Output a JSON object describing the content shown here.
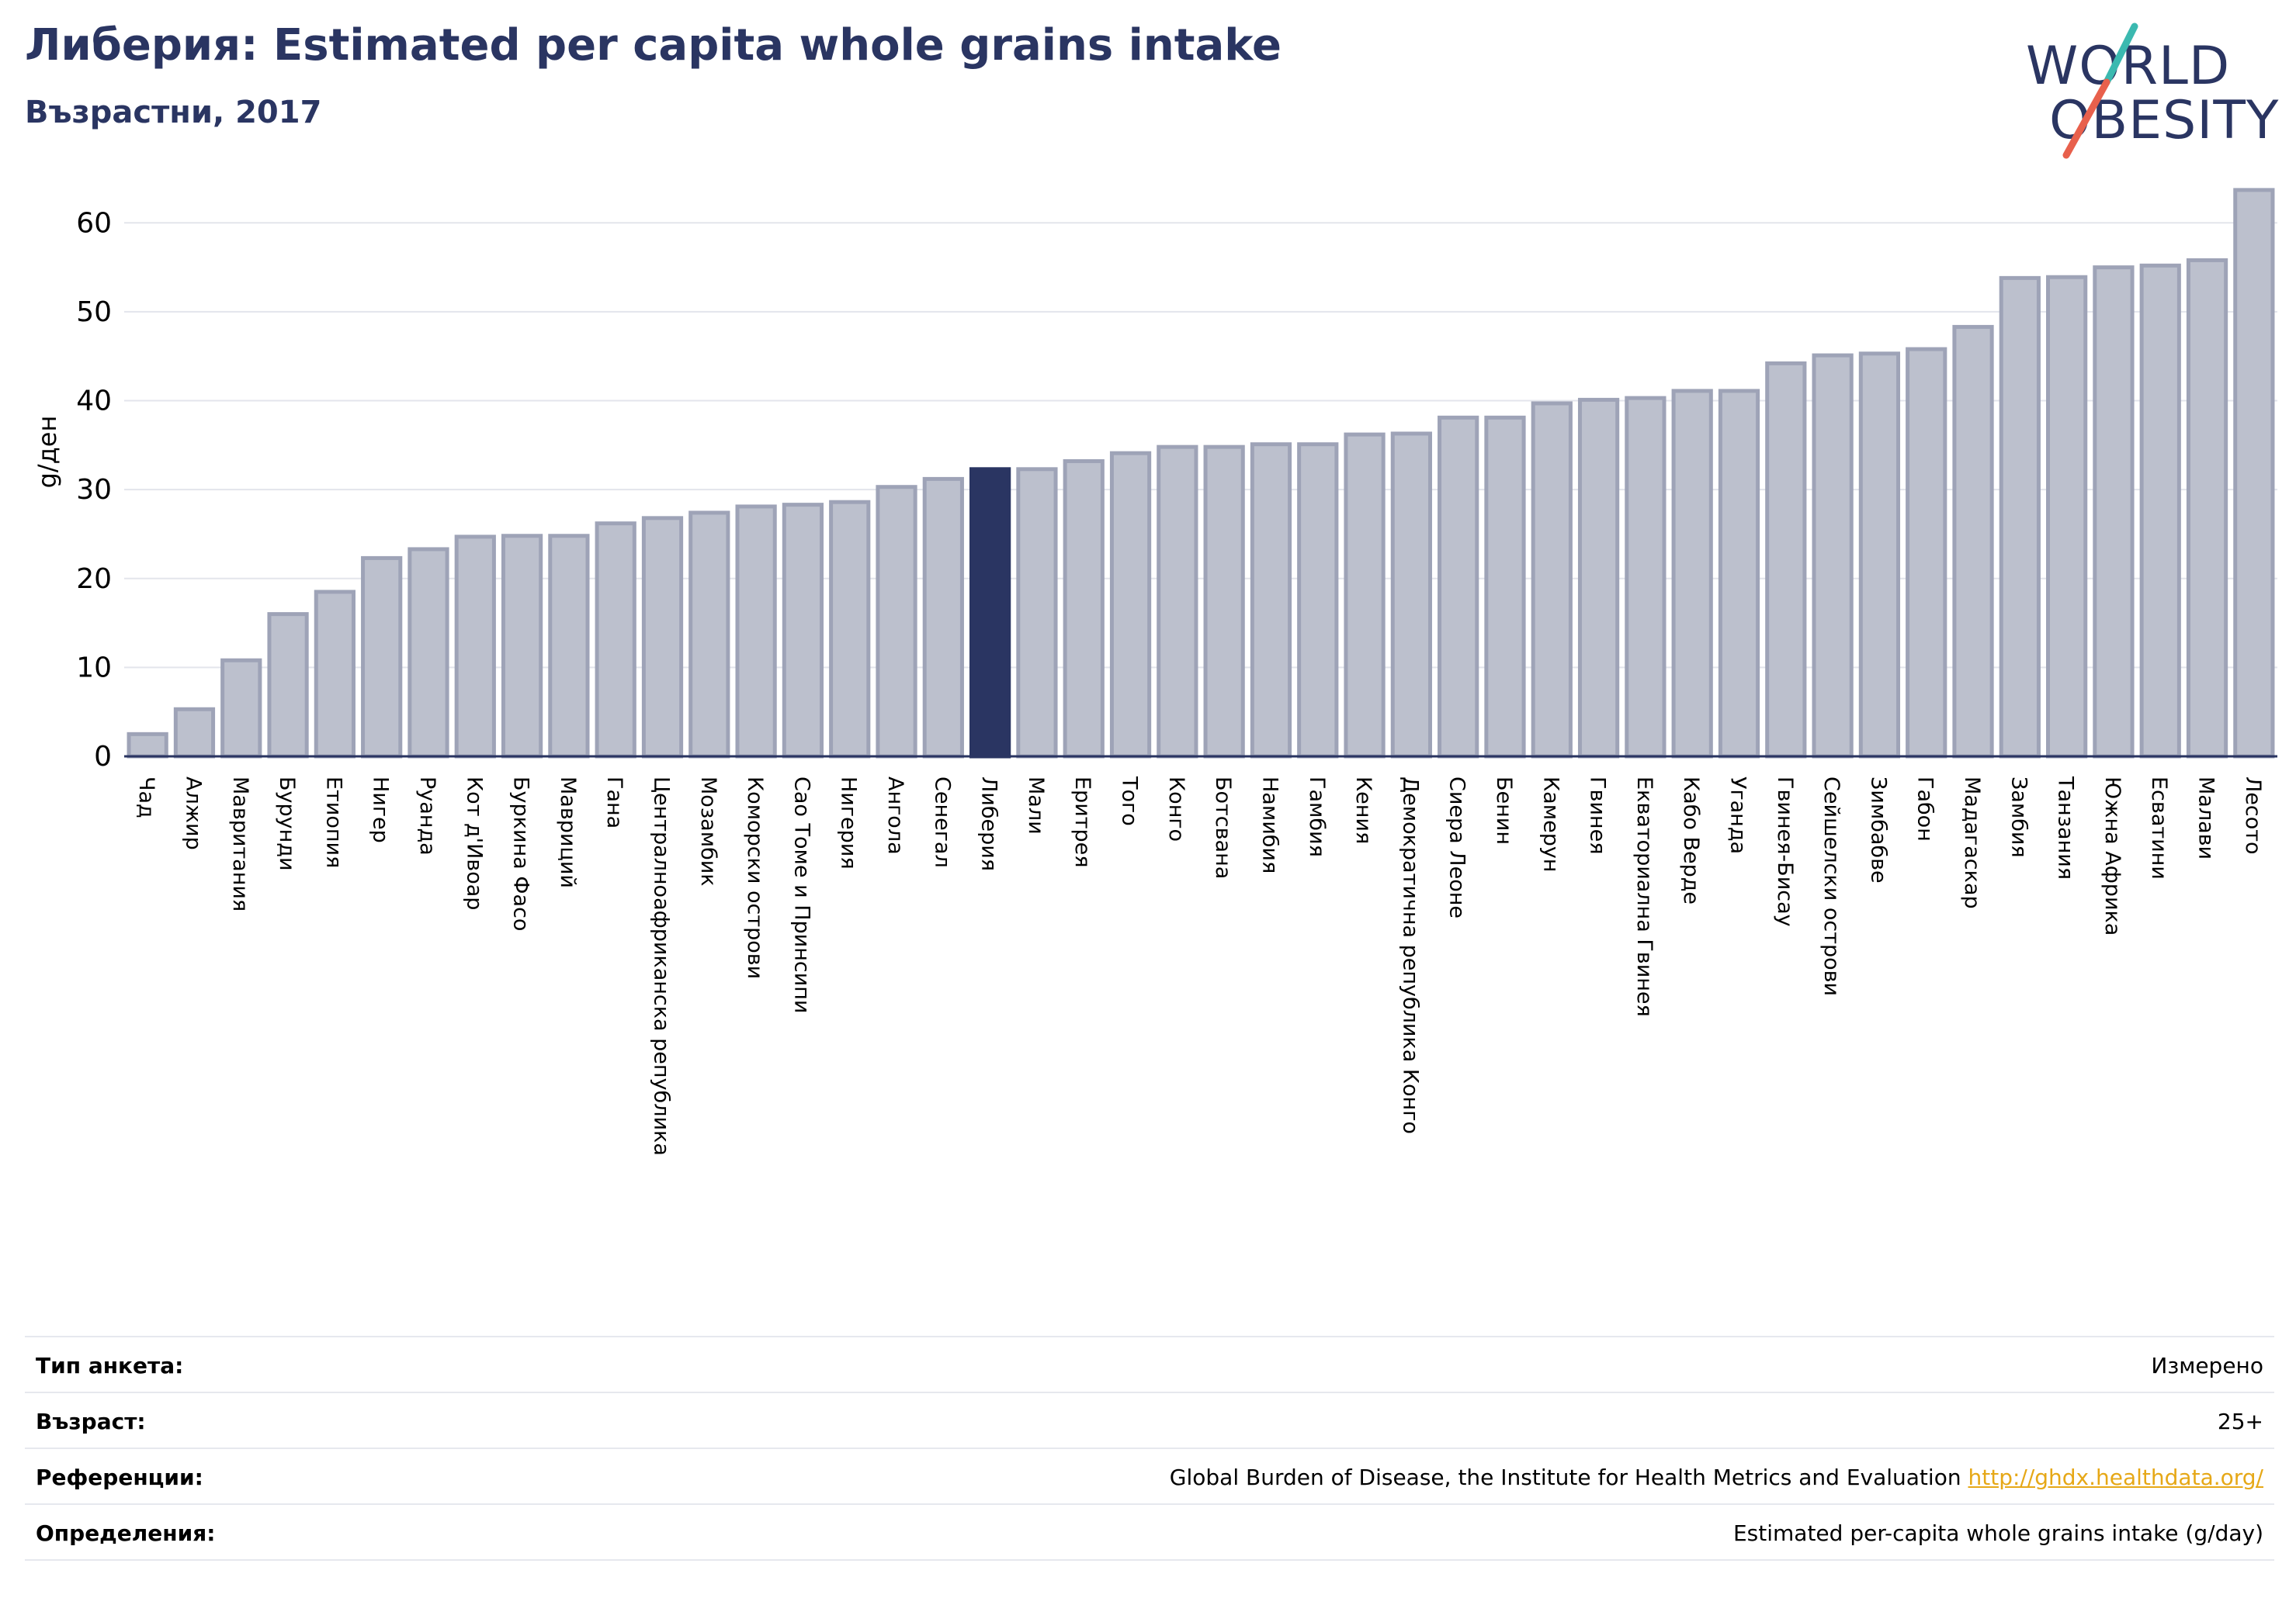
{
  "header": {
    "title": "Либерия: Estimated per capita whole grains intake",
    "subtitle": "Възрастни, 2017"
  },
  "logo": {
    "line1": "WORLD",
    "line2": "OBESITY",
    "colors": {
      "text": "#2a3562",
      "slash_top": "#3bb9b0",
      "slash_bottom": "#e8604c"
    }
  },
  "colors": {
    "bar": "#bcc0cd",
    "bar_edge": "#9ea3b7",
    "highlight": "#2a3562",
    "grid": "#e3e5ec",
    "axis": "#2a3562",
    "link": "#e6a817"
  },
  "chart_data": {
    "type": "bar",
    "title": "",
    "xlabel": "",
    "ylabel": "g/ден",
    "ylim": [
      0,
      65
    ],
    "yticks": [
      0,
      10,
      20,
      30,
      40,
      50,
      60
    ],
    "grid": true,
    "highlight": "Либерия",
    "categories": [
      "Чад",
      "Алжир",
      "Мавритания",
      "Бурунди",
      "Етиопия",
      "Нигер",
      "Руанда",
      "Кот д'Ивоар",
      "Буркина Фасо",
      "Мавриций",
      "Гана",
      "Централноафриканска република",
      "Мозамбик",
      "Коморски острови",
      "Сао Томе и Принсипи",
      "Нигерия",
      "Ангола",
      "Сенегал",
      "Либерия",
      "Мали",
      "Еритрея",
      "Того",
      "Конго",
      "Ботсвана",
      "Намибия",
      "Гамбия",
      "Кения",
      "Демократична република Конго",
      "Сиера Леоне",
      "Бенин",
      "Камерун",
      "Гвинея",
      "Екваториална Гвинея",
      "Кабо Верде",
      "Уганда",
      "Гвинея-Бисау",
      "Сейшелски острови",
      "Зимбабве",
      "Габон",
      "Мадагаскар",
      "Замбия",
      "Танзания",
      "Южна Африка",
      "Есватини",
      "Малави",
      "Лесото"
    ],
    "values": [
      2.5,
      5.3,
      10.8,
      16.0,
      18.5,
      22.3,
      23.3,
      24.7,
      24.8,
      24.8,
      26.2,
      26.8,
      27.4,
      28.1,
      28.3,
      28.6,
      30.3,
      31.2,
      32.3,
      32.3,
      33.2,
      34.1,
      34.8,
      34.8,
      35.1,
      35.1,
      36.2,
      36.3,
      38.1,
      38.1,
      39.7,
      40.1,
      40.3,
      41.1,
      41.1,
      44.2,
      45.1,
      45.3,
      45.8,
      48.3,
      53.8,
      53.9,
      55.0,
      55.2,
      55.8,
      63.7
    ]
  },
  "info_rows": [
    {
      "label": "Тип анкета:",
      "value": "Измерено"
    },
    {
      "label": "Възраст:",
      "value": "25+"
    },
    {
      "label": "Референции:",
      "value": "Global Burden of Disease, the Institute for Health Metrics and Evaluation",
      "link": "http://ghdx.healthdata.org/"
    },
    {
      "label": "Определения:",
      "value": "Estimated per-capita whole grains intake (g/day)"
    }
  ]
}
